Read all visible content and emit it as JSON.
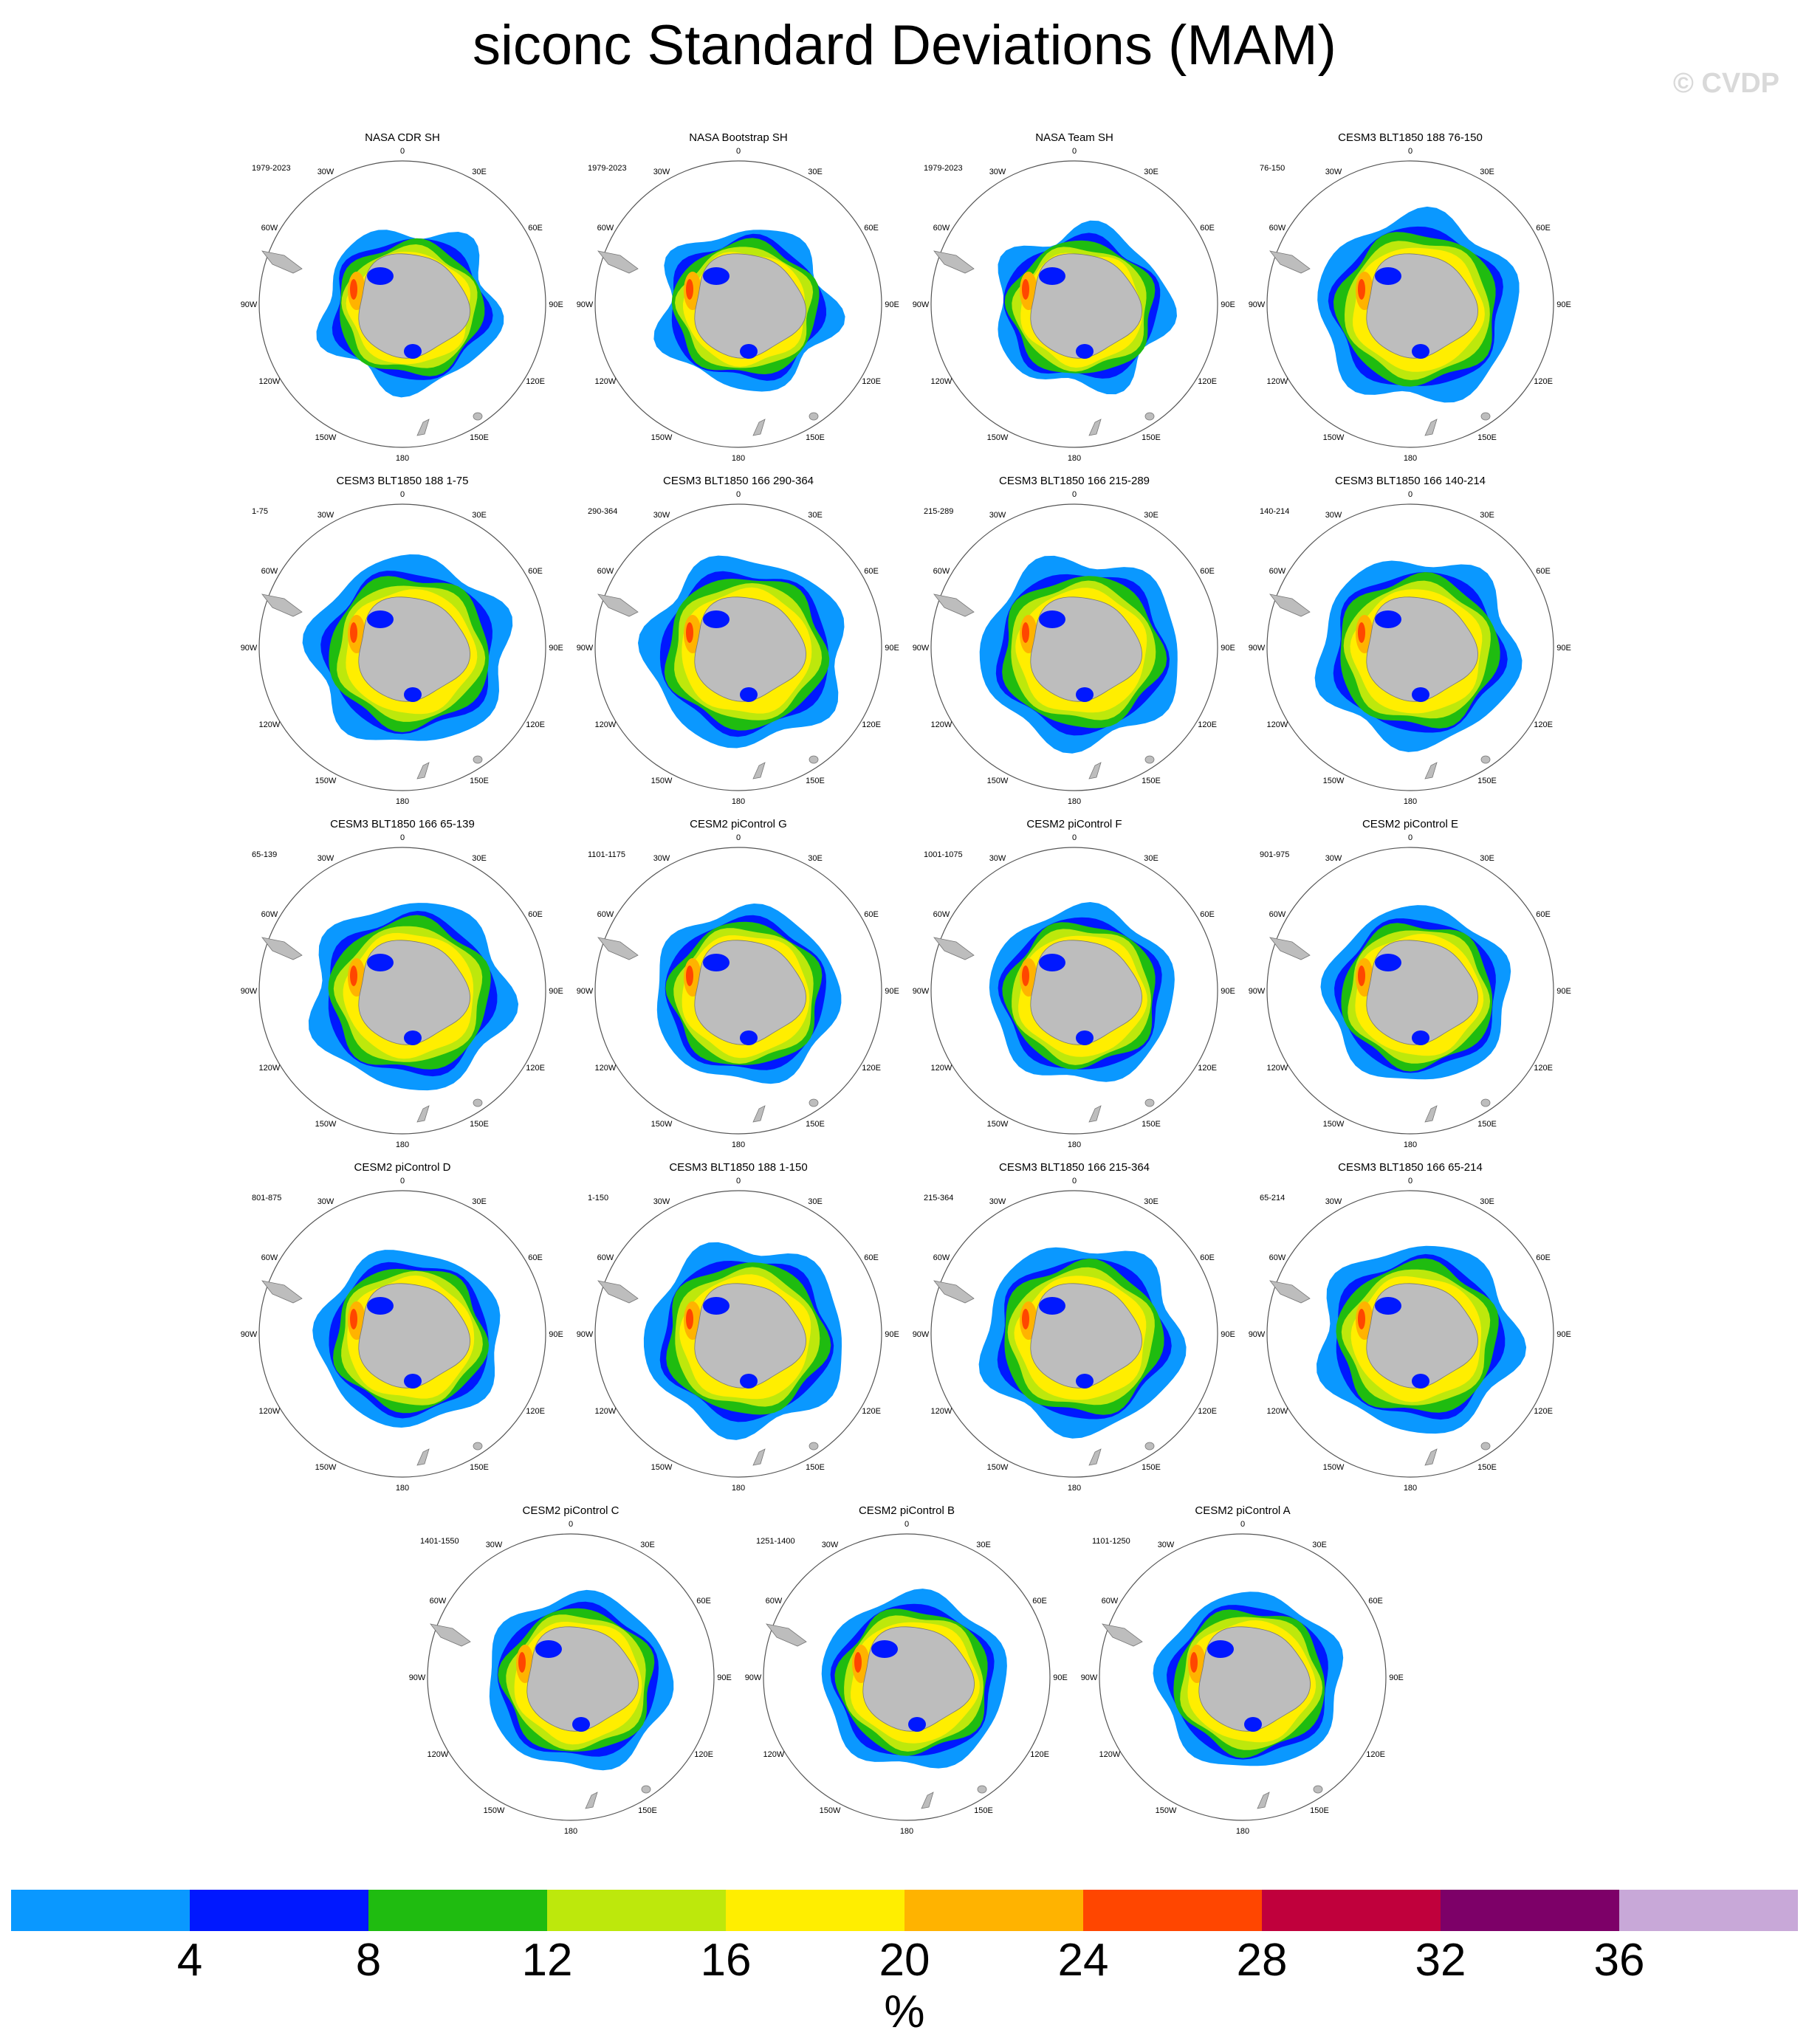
{
  "title": "siconc Standard Deviations (MAM)",
  "watermark": "© CVDP",
  "lon_labels": [
    "0",
    "30E",
    "60E",
    "90E",
    "120E",
    "150E",
    "180",
    "150W",
    "120W",
    "90W",
    "60W",
    "30W"
  ],
  "panels": [
    {
      "title": "NASA CDR SH",
      "years": "1979-2023",
      "style": "obs"
    },
    {
      "title": "NASA Bootstrap SH",
      "years": "1979-2023",
      "style": "obs"
    },
    {
      "title": "NASA Team SH",
      "years": "1979-2023",
      "style": "obs"
    },
    {
      "title": "CESM3 BLT1850 188 76-150",
      "years": "76-150",
      "style": "model"
    },
    {
      "title": "CESM3 BLT1850 188 1-75",
      "years": "1-75",
      "style": "model"
    },
    {
      "title": "CESM3 BLT1850 166 290-364",
      "years": "290-364",
      "style": "model"
    },
    {
      "title": "CESM3 BLT1850 166 215-289",
      "years": "215-289",
      "style": "model"
    },
    {
      "title": "CESM3 BLT1850 166 140-214",
      "years": "140-214",
      "style": "model"
    },
    {
      "title": "CESM3 BLT1850 166 65-139",
      "years": "65-139",
      "style": "model"
    },
    {
      "title": "CESM2 piControl G",
      "years": "1101-1175",
      "style": "cesm2"
    },
    {
      "title": "CESM2 piControl F",
      "years": "1001-1075",
      "style": "cesm2"
    },
    {
      "title": "CESM2 piControl E",
      "years": "901-975",
      "style": "cesm2"
    },
    {
      "title": "CESM2 piControl D",
      "years": "801-875",
      "style": "cesm2"
    },
    {
      "title": "CESM3 BLT1850 188 1-150",
      "years": "1-150",
      "style": "model"
    },
    {
      "title": "CESM3 BLT1850 166 215-364",
      "years": "215-364",
      "style": "model"
    },
    {
      "title": "CESM3 BLT1850 166 65-214",
      "years": "65-214",
      "style": "model"
    },
    {
      "title": "CESM2 piControl C",
      "years": "1401-1550",
      "style": "cesm2"
    },
    {
      "title": "CESM2 piControl B",
      "years": "1251-1400",
      "style": "cesm2"
    },
    {
      "title": "CESM2 piControl A",
      "years": "1101-1250",
      "style": "cesm2"
    }
  ],
  "colorbar": {
    "colors": [
      "#0a98ff",
      "#0018ff",
      "#1fbc10",
      "#bde80c",
      "#ffee00",
      "#ffb300",
      "#ff4600",
      "#c0003c",
      "#7d0068",
      "#c8a8d8"
    ],
    "ticks": [
      "4",
      "8",
      "12",
      "16",
      "20",
      "24",
      "28",
      "32",
      "36"
    ],
    "units": "%"
  }
}
